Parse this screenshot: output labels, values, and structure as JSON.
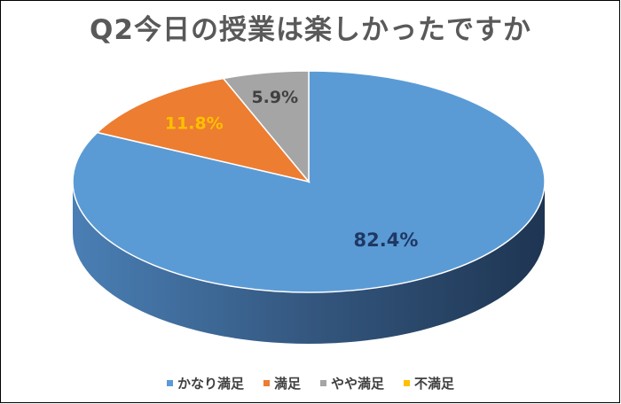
{
  "chart_data": {
    "type": "pie",
    "title": "Q2今日の授業は楽しかったですか",
    "categories": [
      "かなり満足",
      "満足",
      "やや満足",
      "不満足"
    ],
    "values": [
      82.4,
      11.8,
      5.9,
      0.0
    ],
    "data_labels": [
      "82.4%",
      "11.8%",
      "5.9%",
      ""
    ],
    "colors": [
      "#5B9BD5",
      "#ED7D31",
      "#A5A5A5",
      "#FFC000"
    ],
    "label_colors": [
      "#1F3864",
      "#FFC000",
      "#404040",
      "#404040"
    ],
    "legend_position": "bottom",
    "style": "3d"
  }
}
